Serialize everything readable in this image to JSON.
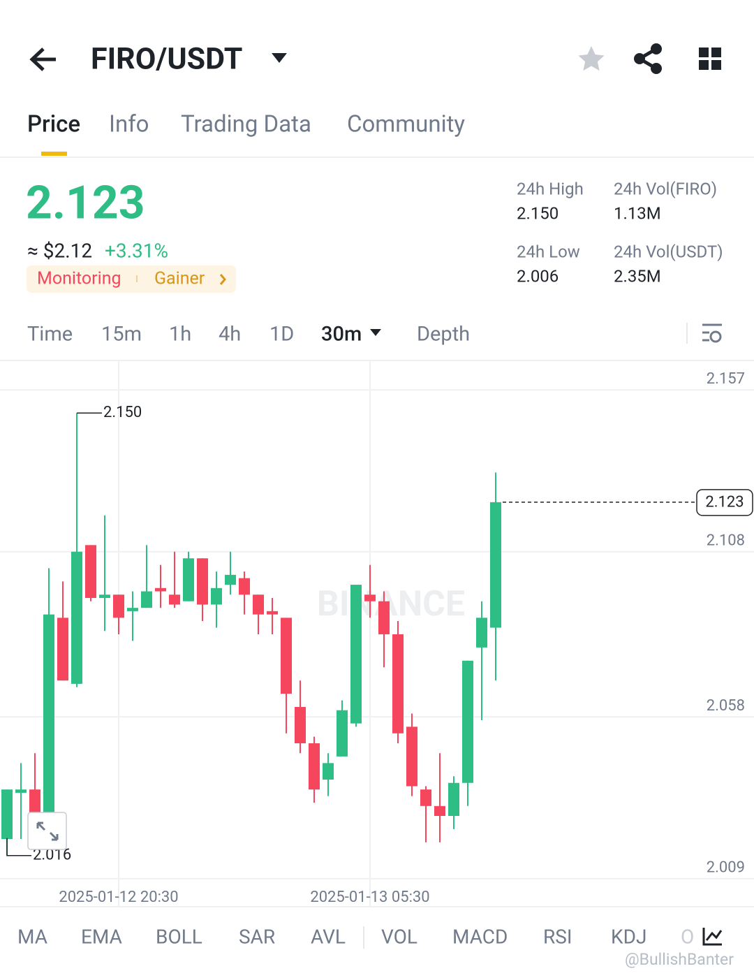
{
  "header": {
    "pair": "FIRO/USDT"
  },
  "tabs": [
    "Price",
    "Info",
    "Trading Data",
    "Community"
  ],
  "price": {
    "last": "2.123",
    "fiat": "≈ $2.12",
    "change": "+3.31%",
    "tags": [
      "Monitoring",
      "Gainer"
    ]
  },
  "stats": [
    {
      "label": "24h High",
      "value": "2.150"
    },
    {
      "label": "24h Vol(FIRO)",
      "value": "1.13M"
    },
    {
      "label": "24h Low",
      "value": "2.006"
    },
    {
      "label": "24h Vol(USDT)",
      "value": "2.35M"
    }
  ],
  "intervals": [
    "Time",
    "15m",
    "1h",
    "4h",
    "1D",
    "30m",
    "Depth"
  ],
  "chart_data": {
    "type": "candlestick",
    "watermark": "BINANCE",
    "categories": [
      null,
      null,
      null,
      null,
      null,
      null,
      null,
      null,
      "2025-01-12 20:30",
      null,
      null,
      null,
      null,
      null,
      null,
      null,
      null,
      null,
      null,
      null,
      null,
      null,
      null,
      null,
      null,
      null,
      "2025-01-13 05:30",
      null,
      null,
      null,
      null,
      null,
      null,
      null,
      null,
      null
    ],
    "open": [
      2.021,
      2.035,
      2.036,
      2.029,
      2.088,
      2.068,
      2.11,
      2.094,
      2.095,
      2.09,
      2.091,
      2.097,
      2.095,
      2.093,
      2.106,
      2.092,
      2.098,
      2.1,
      2.095,
      2.09,
      2.088,
      2.061,
      2.05,
      2.039,
      2.046,
      2.056,
      2.095,
      2.093,
      2.083,
      2.055,
      2.036,
      2.031,
      2.028,
      2.038,
      2.079,
      2.085
    ],
    "high": [
      2.036,
      2.044,
      2.047,
      2.103,
      2.099,
      2.15,
      2.11,
      2.119,
      2.095,
      2.096,
      2.11,
      2.104,
      2.108,
      2.108,
      2.106,
      2.102,
      2.108,
      2.102,
      2.095,
      2.094,
      2.088,
      2.069,
      2.052,
      2.047,
      2.063,
      2.098,
      2.104,
      2.096,
      2.087,
      2.059,
      2.037,
      2.047,
      2.04,
      2.075,
      2.093,
      2.132
    ],
    "low": [
      2.016,
      2.021,
      2.023,
      2.029,
      2.069,
      2.067,
      2.093,
      2.084,
      2.083,
      2.081,
      2.091,
      2.091,
      2.091,
      2.093,
      2.087,
      2.085,
      2.095,
      2.089,
      2.083,
      2.083,
      2.053,
      2.047,
      2.032,
      2.034,
      2.046,
      2.055,
      2.088,
      2.073,
      2.05,
      2.034,
      2.02,
      2.02,
      2.024,
      2.031,
      2.057,
      2.069
    ],
    "close": [
      2.036,
      2.036,
      2.029,
      2.089,
      2.069,
      2.108,
      2.094,
      2.095,
      2.088,
      2.091,
      2.096,
      2.096,
      2.092,
      2.106,
      2.092,
      2.097,
      2.101,
      2.095,
      2.089,
      2.089,
      2.065,
      2.05,
      2.036,
      2.044,
      2.06,
      2.098,
      2.093,
      2.083,
      2.053,
      2.037,
      2.031,
      2.028,
      2.038,
      2.075,
      2.088,
      2.123
    ],
    "up_color": "#2ebd85",
    "down_color": "#f6465d",
    "ylim": [
      2.0005,
      2.1657
    ],
    "yticks": [
      2.157,
      2.108,
      2.058,
      2.009
    ],
    "grid": true,
    "max_label": {
      "value": 2.15,
      "label": "2.150"
    },
    "min_label": 2.016,
    "last_price": 2.123
  },
  "indicators": [
    "MA",
    "EMA",
    "BOLL",
    "SAR",
    "AVL",
    "VOL",
    "MACD",
    "RSI",
    "KDJ",
    "O"
  ],
  "credit": "@BullishBanter"
}
